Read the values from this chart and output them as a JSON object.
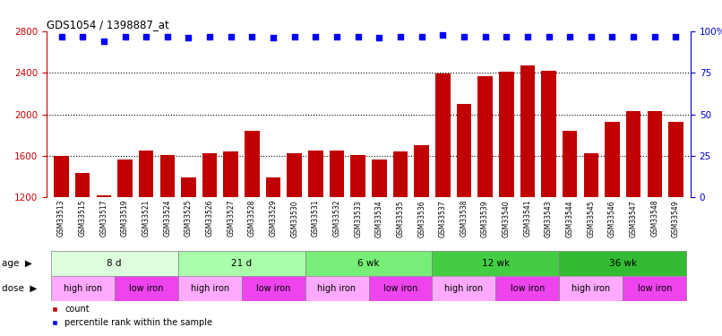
{
  "title": "GDS1054 / 1398887_at",
  "samples": [
    "GSM33513",
    "GSM33515",
    "GSM33517",
    "GSM33519",
    "GSM33521",
    "GSM33524",
    "GSM33525",
    "GSM33526",
    "GSM33527",
    "GSM33528",
    "GSM33529",
    "GSM33530",
    "GSM33531",
    "GSM33532",
    "GSM33533",
    "GSM33534",
    "GSM33535",
    "GSM33536",
    "GSM33537",
    "GSM33538",
    "GSM33539",
    "GSM33540",
    "GSM33541",
    "GSM33543",
    "GSM33544",
    "GSM33545",
    "GSM33546",
    "GSM33547",
    "GSM33548",
    "GSM33549"
  ],
  "counts": [
    1600,
    1430,
    1215,
    1560,
    1650,
    1610,
    1390,
    1620,
    1640,
    1840,
    1390,
    1620,
    1650,
    1650,
    1610,
    1560,
    1640,
    1700,
    2390,
    2100,
    2370,
    2410,
    2470,
    2420,
    1840,
    1620,
    1930,
    2030,
    2030,
    1930
  ],
  "percentile_ranks": [
    97,
    97,
    94,
    97,
    97,
    97,
    96,
    97,
    97,
    97,
    96,
    97,
    97,
    97,
    97,
    96,
    97,
    97,
    98,
    97,
    97,
    97,
    97,
    97,
    97,
    97,
    97,
    97,
    97,
    97
  ],
  "ylim_left": [
    1200,
    2800
  ],
  "ylim_right": [
    0,
    100
  ],
  "yticks_left": [
    1200,
    1600,
    2000,
    2400,
    2800
  ],
  "yticks_right": [
    0,
    25,
    50,
    75,
    100
  ],
  "bar_color": "#c00000",
  "dot_color": "#0000ff",
  "age_groups": [
    {
      "label": "8 d",
      "start": 0,
      "end": 6,
      "color": "#ddffdd"
    },
    {
      "label": "21 d",
      "start": 6,
      "end": 12,
      "color": "#aaffaa"
    },
    {
      "label": "6 wk",
      "start": 12,
      "end": 18,
      "color": "#77ee77"
    },
    {
      "label": "12 wk",
      "start": 18,
      "end": 24,
      "color": "#44cc44"
    },
    {
      "label": "36 wk",
      "start": 24,
      "end": 30,
      "color": "#33bb33"
    }
  ],
  "dose_groups": [
    {
      "label": "high iron",
      "start": 0,
      "end": 3,
      "color": "#ffaaff"
    },
    {
      "label": "low iron",
      "start": 3,
      "end": 6,
      "color": "#ee44ee"
    },
    {
      "label": "high iron",
      "start": 6,
      "end": 9,
      "color": "#ffaaff"
    },
    {
      "label": "low iron",
      "start": 9,
      "end": 12,
      "color": "#ee44ee"
    },
    {
      "label": "high iron",
      "start": 12,
      "end": 15,
      "color": "#ffaaff"
    },
    {
      "label": "low iron",
      "start": 15,
      "end": 18,
      "color": "#ee44ee"
    },
    {
      "label": "high iron",
      "start": 18,
      "end": 21,
      "color": "#ffaaff"
    },
    {
      "label": "low iron",
      "start": 21,
      "end": 24,
      "color": "#ee44ee"
    },
    {
      "label": "high iron",
      "start": 24,
      "end": 27,
      "color": "#ffaaff"
    },
    {
      "label": "low iron",
      "start": 27,
      "end": 30,
      "color": "#ee44ee"
    }
  ],
  "tick_label_color_left": "#cc0000",
  "tick_label_color_right": "#0000cc",
  "ytick_right_labels": [
    "0",
    "25",
    "50",
    "75",
    "100%"
  ]
}
